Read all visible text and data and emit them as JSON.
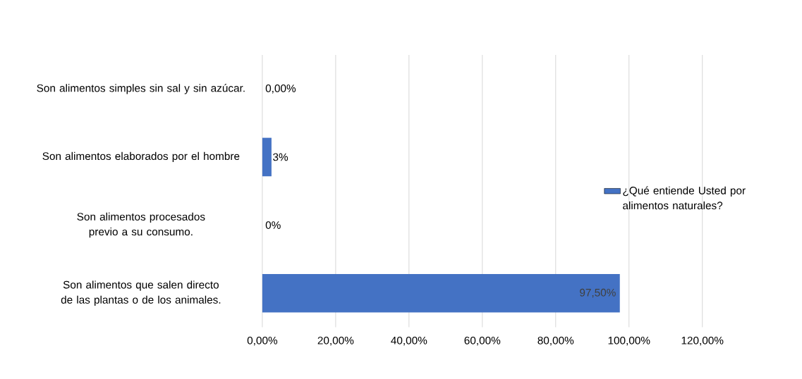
{
  "chart_data": {
    "type": "bar",
    "orientation": "horizontal",
    "categories": [
      "Son alimentos simples sin sal y sin azúcar.",
      "Son alimentos elaborados por el hombre",
      "Son alimentos procesados previo a su consumo.",
      "Son alimentos que salen directo de las plantas o de los animales."
    ],
    "series": [
      {
        "name": "¿Qué entiende Usted por alimentos naturales?",
        "color": "#4472c4",
        "values": [
          0,
          2.5,
          0,
          97.5
        ],
        "value_labels": [
          "0,00%",
          "3%",
          "0%",
          "97,50%"
        ]
      }
    ],
    "xlim": [
      0,
      120
    ],
    "xticks": [
      {
        "value": 0,
        "label": "0,00%"
      },
      {
        "value": 20,
        "label": "20,00%"
      },
      {
        "value": 40,
        "label": "40,00%"
      },
      {
        "value": 60,
        "label": "60,00%"
      },
      {
        "value": 80,
        "label": "80,00%"
      },
      {
        "value": 100,
        "label": "100,00%"
      },
      {
        "value": 120,
        "label": "120,00%"
      }
    ],
    "grid": "x",
    "legend": "right"
  }
}
